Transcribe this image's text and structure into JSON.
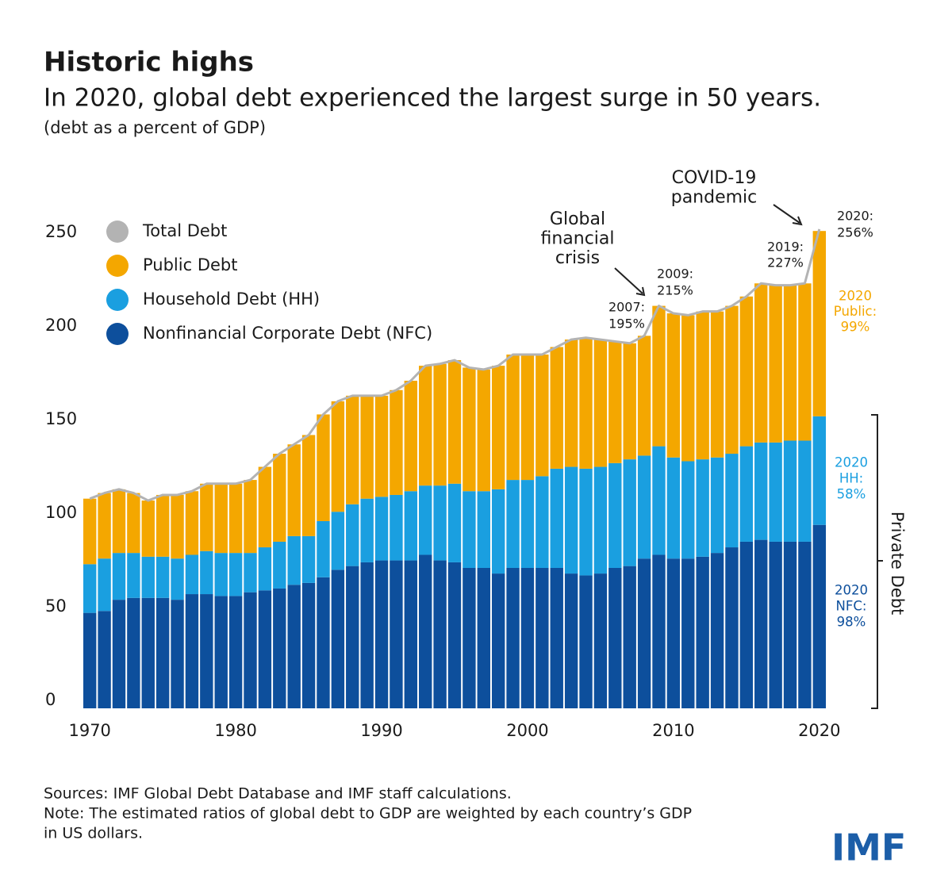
{
  "chart_data": {
    "type": "stacked_bar",
    "title": "Historic highs",
    "subtitle": "In 2020, global debt experienced the largest surge in 50 years.",
    "unit_note": "(debt as a percent of GDP)",
    "x": [
      1970,
      1971,
      1972,
      1973,
      1974,
      1975,
      1976,
      1977,
      1978,
      1979,
      1980,
      1981,
      1982,
      1983,
      1984,
      1985,
      1986,
      1987,
      1988,
      1989,
      1990,
      1991,
      1992,
      1993,
      1994,
      1995,
      1996,
      1997,
      1998,
      1999,
      2000,
      2001,
      2002,
      2003,
      2004,
      2005,
      2006,
      2007,
      2008,
      2009,
      2010,
      2011,
      2012,
      2013,
      2014,
      2015,
      2016,
      2017,
      2018,
      2019,
      2020
    ],
    "xlim": [
      1969.5,
      2020.5
    ],
    "xticks": [
      1970,
      1980,
      1990,
      2000,
      2010,
      2020
    ],
    "ylim": [
      0,
      260
    ],
    "yticks": [
      0,
      50,
      100,
      150,
      200,
      250
    ],
    "series": [
      {
        "name": "Nonfinancial Corporate Debt (NFC)",
        "color": "#0d4f9c",
        "values": [
          51,
          52,
          58,
          59,
          59,
          59,
          58,
          61,
          61,
          60,
          60,
          62,
          63,
          64,
          66,
          67,
          70,
          74,
          76,
          78,
          79,
          79,
          79,
          82,
          79,
          78,
          75,
          75,
          72,
          75,
          75,
          75,
          75,
          72,
          71,
          72,
          75,
          76,
          80,
          82,
          80,
          80,
          81,
          83,
          86,
          89,
          90,
          89,
          89,
          89,
          98
        ]
      },
      {
        "name": "Household Debt (HH)",
        "color": "#1a9fe0",
        "values": [
          26,
          28,
          25,
          24,
          22,
          22,
          22,
          21,
          23,
          23,
          23,
          21,
          23,
          25,
          26,
          25,
          30,
          31,
          33,
          34,
          34,
          35,
          37,
          37,
          40,
          42,
          41,
          41,
          45,
          47,
          47,
          49,
          53,
          57,
          57,
          57,
          56,
          57,
          55,
          58,
          54,
          52,
          52,
          51,
          50,
          51,
          52,
          53,
          54,
          54,
          58
        ]
      },
      {
        "name": "Public Debt",
        "color": "#f4a700",
        "values": [
          35,
          35,
          34,
          32,
          30,
          33,
          34,
          34,
          36,
          37,
          37,
          39,
          43,
          47,
          49,
          54,
          57,
          59,
          58,
          55,
          54,
          56,
          59,
          64,
          65,
          66,
          66,
          65,
          66,
          67,
          67,
          65,
          65,
          68,
          70,
          68,
          65,
          62,
          64,
          75,
          77,
          78,
          79,
          78,
          79,
          80,
          85,
          84,
          83,
          84,
          99
        ]
      },
      {
        "name": "Total Debt",
        "color": "#b3b3b3",
        "type": "line",
        "values": [
          112,
          115,
          117,
          115,
          111,
          114,
          114,
          116,
          120,
          120,
          120,
          122,
          129,
          136,
          141,
          146,
          157,
          164,
          167,
          167,
          167,
          170,
          175,
          183,
          184,
          186,
          182,
          181,
          183,
          189,
          189,
          189,
          193,
          197,
          198,
          197,
          196,
          195,
          199,
          215,
          211,
          210,
          212,
          212,
          215,
          220,
          227,
          226,
          226,
          227,
          256
        ]
      }
    ],
    "legend_order": [
      3,
      2,
      1,
      0
    ],
    "annotations": [
      {
        "lines": [
          "Global",
          "financial",
          "crisis"
        ]
      },
      {
        "lines": [
          "COVID-19",
          "pandemic"
        ]
      },
      {
        "lines": [
          "2007:",
          "195%"
        ]
      },
      {
        "lines": [
          "2009:",
          "215%"
        ]
      },
      {
        "lines": [
          "2019:",
          "227%"
        ]
      },
      {
        "lines": [
          "2020:",
          "256%"
        ]
      },
      {
        "lines": [
          "2020",
          "Public:",
          "99%"
        ]
      },
      {
        "lines": [
          "2020",
          "HH:",
          "58%"
        ]
      },
      {
        "lines": [
          "2020",
          "NFC:",
          "98%"
        ]
      },
      {
        "lines": [
          "Private Debt"
        ]
      }
    ],
    "sources": [
      "Sources: IMF Global Debt Database and IMF staff calculations.",
      "Note: The estimated ratios of global debt to GDP are weighted by each country’s GDP",
      "in US dollars."
    ],
    "logo": "IMF"
  }
}
